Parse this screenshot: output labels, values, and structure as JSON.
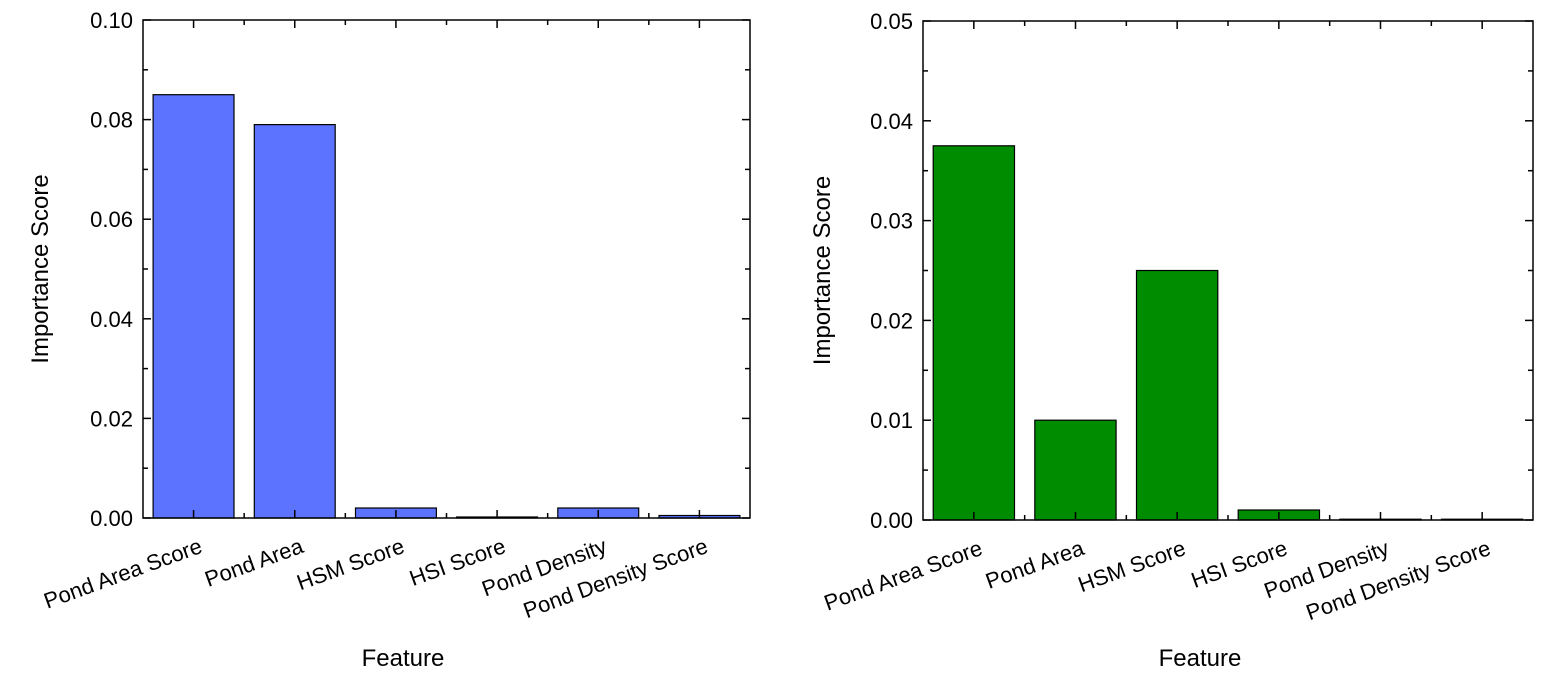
{
  "chart_data": [
    {
      "type": "bar",
      "title": "",
      "xlabel": "Feature",
      "ylabel": "Importance Score",
      "categories": [
        "Pond Area Score",
        "Pond Area",
        "HSM Score",
        "HSI Score",
        "Pond Density",
        "Pond Density Score"
      ],
      "values": [
        0.085,
        0.079,
        0.002,
        0.0002,
        0.002,
        0.0005
      ],
      "ylim": [
        0,
        0.1
      ],
      "yticks": [
        "0.00",
        "0.02",
        "0.04",
        "0.06",
        "0.08",
        "0.10"
      ],
      "grid": false,
      "color": "#5b73ff"
    },
    {
      "type": "bar",
      "title": "",
      "xlabel": "Feature",
      "ylabel": "Importance Score",
      "categories": [
        "Pond Area Score",
        "Pond Area",
        "HSM Score",
        "HSI Score",
        "Pond Density",
        "Pond Density Score"
      ],
      "values": [
        0.0375,
        0.01,
        0.025,
        0.001,
        0.0,
        0.0
      ],
      "ylim": [
        0,
        0.05
      ],
      "yticks": [
        "0.00",
        "0.01",
        "0.02",
        "0.03",
        "0.04",
        "0.05"
      ],
      "grid": false,
      "color": "#008c00"
    }
  ]
}
